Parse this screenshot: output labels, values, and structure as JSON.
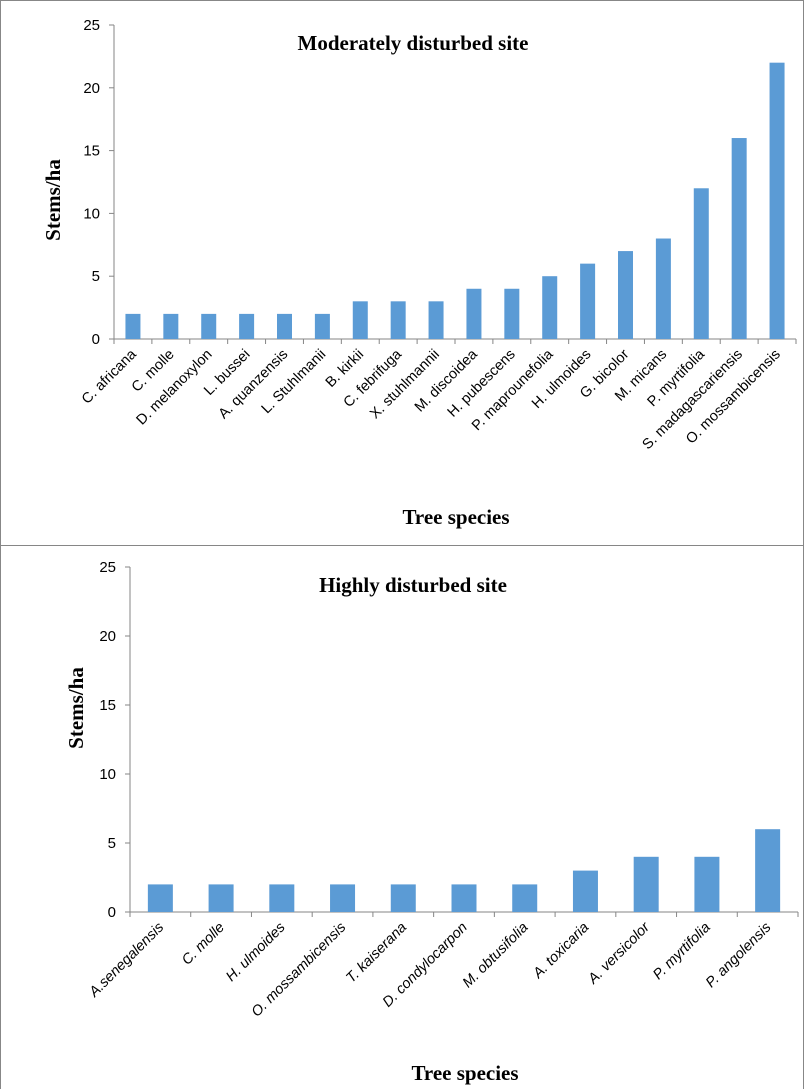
{
  "chart_data": [
    {
      "type": "bar",
      "title": "Moderately disturbed site",
      "xlabel": "Tree species",
      "ylabel": "Stems/ha",
      "ylim": [
        0,
        25
      ],
      "yticks": [
        0,
        5,
        10,
        15,
        20,
        25
      ],
      "grid": false,
      "legend": "none",
      "label_style": "normal",
      "categories": [
        "C. africana",
        "C. molle",
        "D. melanoxylon",
        "L. bussei",
        "A. quanzensis",
        "L. Stuhlmanii",
        "B. kirkii",
        "C. febrifuga",
        "X. stuhlmannii",
        "M. discoidea",
        "H. pubescens",
        "P. maprounefolia",
        "H. ulmoides",
        "G. bicolor",
        "M. micans",
        "P. myrtifolia",
        "S. madagascariensis",
        "O. mossambicensis"
      ],
      "values": [
        2,
        2,
        2,
        2,
        2,
        2,
        3,
        3,
        3,
        4,
        4,
        5,
        6,
        7,
        8,
        12,
        16,
        22
      ],
      "bar_color": "#5B9BD5"
    },
    {
      "type": "bar",
      "title": "Highly disturbed site",
      "xlabel": "Tree species",
      "ylabel": "Stems/ha",
      "ylim": [
        0,
        25
      ],
      "yticks": [
        0,
        5,
        10,
        15,
        20,
        25
      ],
      "grid": false,
      "legend": "none",
      "label_style": "italic",
      "categories": [
        "A.senegalensis",
        "C. molle",
        "H. ulmoides",
        "O. mossambicensis",
        "T. kaiserana",
        "D. condylocarpon",
        "M. obtusifolia",
        "A. toxicaria",
        "A. versicolor",
        "P. myrtifolia",
        "P. angolensis"
      ],
      "values": [
        2,
        2,
        2,
        2,
        2,
        2,
        2,
        3,
        4,
        4,
        6
      ],
      "bar_color": "#5B9BD5"
    }
  ]
}
